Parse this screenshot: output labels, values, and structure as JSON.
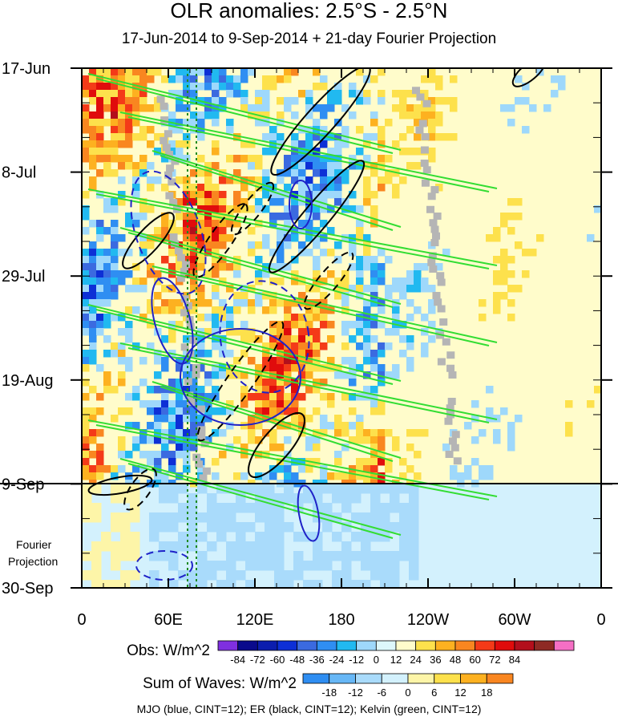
{
  "chart_data": {
    "type": "heatmap",
    "title": "OLR anomalies: 2.5°S - 2.5°N",
    "subtitle": "17-Jun-2014 to 9-Sep-2014 + 21-day Fourier Projection",
    "x_ticks": [
      "0",
      "60E",
      "120E",
      "180",
      "120W",
      "60W",
      "0"
    ],
    "x_range": [
      0,
      360
    ],
    "y_ticks": [
      "17-Jun",
      "8-Jul",
      "29-Jul",
      "19-Aug",
      "9-Sep",
      "30-Sep"
    ],
    "y_range_days": [
      0,
      105
    ],
    "observation_end_label": "9-Sep",
    "projection_label": "Fourier Projection",
    "obs_colorbar": {
      "label": "Obs: W/m^2",
      "levels": [
        -84,
        -72,
        -60,
        -48,
        -36,
        -24,
        -12,
        0,
        12,
        24,
        36,
        48,
        60,
        72,
        84
      ],
      "colors": [
        "#7f2fe0",
        "#0a0a8c",
        "#0c1dae",
        "#0d2fd6",
        "#3b6ae0",
        "#2f8ef2",
        "#21b9f0",
        "#9ed8fb",
        "#ddf7fb",
        "#fffccb",
        "#fde14c",
        "#fdb120",
        "#f98620",
        "#f43a18",
        "#e00c0c",
        "#b30f1c",
        "#8e2a24",
        "#f56fc4"
      ]
    },
    "waves_colorbar": {
      "label": "Sum of Waves: W/m^2",
      "levels": [
        -18,
        -12,
        -6,
        0,
        6,
        12,
        18
      ],
      "colors": [
        "#2f8ef2",
        "#67b7f6",
        "#a9dbfb",
        "#d3f1fd",
        "#fdf5a8",
        "#fde14c",
        "#fdb120",
        "#f98620"
      ]
    },
    "contours": [
      {
        "name": "MJO",
        "color": "blue",
        "cint": 12
      },
      {
        "name": "ER",
        "color": "black",
        "cint": 12
      },
      {
        "name": "Kelvin",
        "color": "green",
        "cint": 12
      }
    ],
    "footer": "MJO (blue, CINT=12); ER (black, CINT=12); Kelvin (green, CINT=12)"
  }
}
